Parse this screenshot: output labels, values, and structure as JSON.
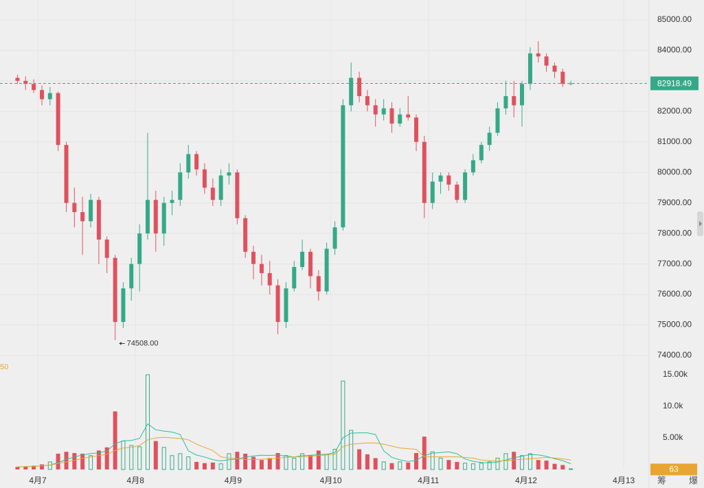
{
  "chart_data": {
    "type": "candlestick",
    "x": [
      6.792,
      6.875,
      6.958,
      7.042,
      7.125,
      7.208,
      7.292,
      7.375,
      7.458,
      7.542,
      7.625,
      7.708,
      7.792,
      7.875,
      7.958,
      8.042,
      8.125,
      8.208,
      8.292,
      8.375,
      8.458,
      8.542,
      8.625,
      8.708,
      8.792,
      8.875,
      8.958,
      9.042,
      9.125,
      9.208,
      9.292,
      9.375,
      9.458,
      9.542,
      9.625,
      9.708,
      9.792,
      9.875,
      9.958,
      10.042,
      10.125,
      10.208,
      10.292,
      10.375,
      10.458,
      10.542,
      10.625,
      10.708,
      10.792,
      10.875,
      10.958,
      11.042,
      11.125,
      11.208,
      11.292,
      11.375,
      11.458,
      11.542,
      11.625,
      11.708,
      11.792,
      11.875,
      11.958,
      12.042,
      12.125,
      12.208,
      12.292,
      12.375,
      12.458
    ],
    "open": [
      83100,
      83000,
      82900,
      82700,
      82400,
      82600,
      80900,
      79000,
      78700,
      78400,
      79100,
      77800,
      77200,
      75100,
      76200,
      77000,
      78000,
      79100,
      78000,
      79000,
      79100,
      80000,
      80600,
      80100,
      79500,
      79100,
      79900,
      80000,
      78500,
      77400,
      77000,
      76700,
      76300,
      75100,
      76200,
      76900,
      77400,
      76600,
      76100,
      77500,
      78200,
      82200,
      83100,
      82500,
      82200,
      81900,
      82100,
      81600,
      81900,
      81800,
      81000,
      79000,
      79700,
      79900,
      79600,
      79100,
      80000,
      80400,
      80900,
      81300,
      82100,
      82500,
      82200,
      82900,
      83900,
      83800,
      83500,
      83300,
      82900
    ],
    "high": [
      83200,
      83150,
      83050,
      82850,
      82800,
      82650,
      81000,
      79500,
      79200,
      79300,
      79200,
      77900,
      77300,
      76400,
      77200,
      78300,
      81300,
      79400,
      79200,
      79400,
      80300,
      80900,
      80700,
      80300,
      79800,
      80100,
      80300,
      80100,
      78600,
      77600,
      77300,
      77100,
      76500,
      76400,
      77100,
      77800,
      77500,
      76800,
      77700,
      78400,
      82400,
      83600,
      83300,
      82700,
      82400,
      82400,
      82300,
      82100,
      82500,
      81900,
      81200,
      80000,
      80000,
      80000,
      79700,
      80100,
      80600,
      81000,
      81500,
      82300,
      83000,
      83000,
      83000,
      84100,
      84300,
      83900,
      83600,
      83400,
      83000
    ],
    "low": [
      82900,
      82700,
      82600,
      82200,
      82200,
      80700,
      78700,
      78200,
      77300,
      78200,
      77000,
      76700,
      74508,
      74900,
      75800,
      76100,
      77800,
      77400,
      77600,
      78600,
      78900,
      79800,
      79900,
      79300,
      78900,
      78900,
      79600,
      78300,
      77200,
      76500,
      76300,
      76000,
      74700,
      74900,
      76100,
      76800,
      76200,
      75800,
      76000,
      77300,
      78100,
      82000,
      82300,
      82000,
      81500,
      81700,
      81300,
      81500,
      81700,
      80700,
      78500,
      78800,
      79300,
      79400,
      79000,
      79000,
      79900,
      80300,
      80700,
      81200,
      81900,
      81800,
      81500,
      82700,
      83600,
      83300,
      83100,
      82800,
      82850
    ],
    "close": [
      83000,
      82900,
      82700,
      82400,
      82600,
      80900,
      79000,
      78700,
      78400,
      79100,
      77800,
      77200,
      75100,
      76200,
      77000,
      78000,
      79100,
      78000,
      79000,
      79100,
      80000,
      80600,
      80100,
      79500,
      79100,
      79900,
      80000,
      78500,
      77400,
      77000,
      76700,
      76300,
      75100,
      76200,
      76900,
      77400,
      76600,
      76100,
      77500,
      78200,
      82200,
      83100,
      82500,
      82200,
      81900,
      82100,
      81600,
      81900,
      81800,
      81000,
      79000,
      79700,
      79900,
      79600,
      79100,
      80000,
      80400,
      80900,
      81300,
      82100,
      82500,
      82200,
      82900,
      83900,
      83800,
      83500,
      83300,
      82900,
      82918.49
    ],
    "volume": [
      400,
      500,
      600,
      800,
      1200,
      2500,
      2800,
      2600,
      2500,
      2200,
      3000,
      3500,
      9200,
      4500,
      3800,
      3600,
      15000,
      4500,
      3500,
      2200,
      2500,
      2000,
      1200,
      1000,
      1100,
      900,
      2500,
      2800,
      2500,
      2000,
      1500,
      1800,
      2600,
      2200,
      1800,
      2500,
      2300,
      3000,
      2400,
      3200,
      14000,
      6200,
      3200,
      2400,
      1800,
      1200,
      1000,
      1200,
      1100,
      2600,
      5200,
      2800,
      1800,
      1500,
      1200,
      1000,
      900,
      1000,
      1200,
      1800,
      2500,
      2800,
      2200,
      2500,
      1500,
      1400,
      900,
      700,
      63
    ],
    "volume_ma": [
      {
        "color": "#2bbf9c",
        "values": [
          400,
          450,
          500,
          575,
          700,
          1100,
          1580,
          1980,
          2320,
          2520,
          2620,
          2920,
          4080,
          4540,
          4600,
          4920,
          7220,
          6280,
          6080,
          5920,
          5540,
          2940,
          2280,
          1980,
          1560,
          1340,
          1540,
          1660,
          1960,
          2140,
          2260,
          2220,
          2280,
          2120,
          1980,
          2180,
          2240,
          2360,
          2400,
          2680,
          5020,
          5760,
          5800,
          5800,
          5520,
          2960,
          1920,
          1520,
          1260,
          1420,
          2220,
          2580,
          2700,
          2780,
          2500,
          1660,
          1280,
          1120,
          1060,
          1180,
          1480,
          1860,
          2100,
          2360,
          2300,
          2080,
          1700,
          1400,
          900
        ]
      },
      {
        "color": "#e8a531",
        "values": [
          400,
          450,
          500,
          575,
          700,
          950,
          1200,
          1450,
          1750,
          2000,
          2200,
          2400,
          3000,
          3400,
          3500,
          3800,
          4700,
          5000,
          5100,
          5000,
          4900,
          4700,
          4000,
          3500,
          3000,
          2000,
          1800,
          1700,
          1600,
          1600,
          1600,
          1700,
          1800,
          1900,
          2000,
          2000,
          2100,
          2200,
          2300,
          2400,
          3600,
          4000,
          4100,
          4200,
          4200,
          4000,
          3700,
          3400,
          3300,
          3200,
          2000,
          2000,
          2000,
          2000,
          2000,
          1900,
          1800,
          1500,
          1400,
          1300,
          1400,
          1500,
          1600,
          1700,
          1800,
          1900,
          1800,
          1700,
          1500
        ]
      }
    ],
    "up_color": "#35a987",
    "down_color": "#e0515d",
    "xlim": [
      6.613,
      13.259
    ],
    "xticks": [
      {
        "value": 7,
        "label": "4月7"
      },
      {
        "value": 8,
        "label": "4月8"
      },
      {
        "value": 9,
        "label": "4月9"
      },
      {
        "value": 10,
        "label": "4月10"
      },
      {
        "value": 11,
        "label": "4月11"
      },
      {
        "value": 12,
        "label": "4月12"
      },
      {
        "value": 13,
        "label": "4月13"
      }
    ],
    "ylim": [
      73730,
      85650
    ],
    "yticks": [
      {
        "value": 74000,
        "label": "74000.00"
      },
      {
        "value": 75000,
        "label": "75000.00"
      },
      {
        "value": 76000,
        "label": "76000.00"
      },
      {
        "value": 77000,
        "label": "77000.00"
      },
      {
        "value": 78000,
        "label": "78000.00"
      },
      {
        "value": 79000,
        "label": "79000.00"
      },
      {
        "value": 80000,
        "label": "80000.00"
      },
      {
        "value": 81000,
        "label": "81000.00"
      },
      {
        "value": 82000,
        "label": "82000.00"
      },
      {
        "value": 83000,
        "label": "83000.00"
      },
      {
        "value": 84000,
        "label": "84000.00"
      },
      {
        "value": 85000,
        "label": "85000.00"
      }
    ],
    "vlim": [
      0,
      15650
    ],
    "vticks": [
      {
        "value": 5000,
        "label": "5.00k"
      },
      {
        "value": 10000,
        "label": "10.0k"
      },
      {
        "value": 15000,
        "label": "15.00k"
      }
    ],
    "grid": true,
    "low_marker": {
      "x": 7.792,
      "value": 74508,
      "label": "74508.00"
    },
    "last_price": {
      "value": 82918.49,
      "label": "82918.49"
    },
    "last_volume": 63,
    "volume_pane_label": "50",
    "toolbar": [
      "筹",
      "爆"
    ]
  }
}
